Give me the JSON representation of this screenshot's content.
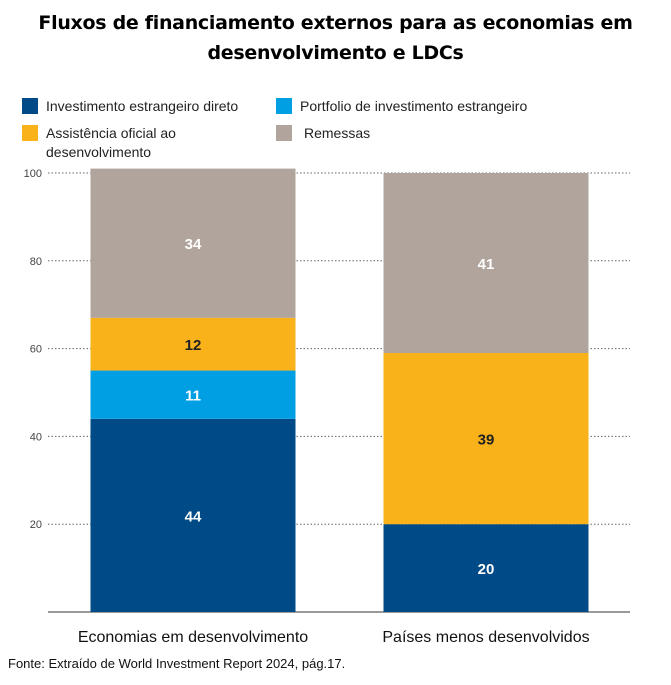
{
  "chart_data": {
    "type": "bar",
    "stacked": true,
    "title": "Fluxos de financiamento externos para as economias em desenvolvimento e LDCs",
    "title_lines": [
      "Fluxos de financiamento externos para as economias em",
      "desenvolvimento e LDCs"
    ],
    "categories": [
      "Economias em desenvolvimento",
      "Países menos desenvolvidos"
    ],
    "series": [
      {
        "name": "Investimento estrangeiro direto",
        "color": "#004b87",
        "values": [
          44,
          20
        ]
      },
      {
        "name": "Portfolio de investimento estrangeiro",
        "color": "#009fe3",
        "values": [
          11,
          0
        ]
      },
      {
        "name": "Assistência oficial ao desenvolvimento",
        "color": "#f9b21a",
        "values": [
          12,
          39
        ]
      },
      {
        "name": "Remessas",
        "color": "#b0a49c",
        "values": [
          34,
          41
        ]
      }
    ],
    "legend_lines": {
      "fdi": [
        "Investimento estrangeiro direto"
      ],
      "portfolio": [
        "Portfolio de investimento estrangeiro"
      ],
      "oda": [
        "Assistência oficial ao",
        "desenvolvimento"
      ],
      "remittances": [
        "Remessas"
      ]
    },
    "yticks": [
      "20",
      "40",
      "60",
      "80",
      "100"
    ],
    "ylim": [
      0,
      100
    ],
    "grid": true,
    "legend_position": "top"
  },
  "source_note": "Fonte: Extraído de World Investment Report 2024, pág.17."
}
